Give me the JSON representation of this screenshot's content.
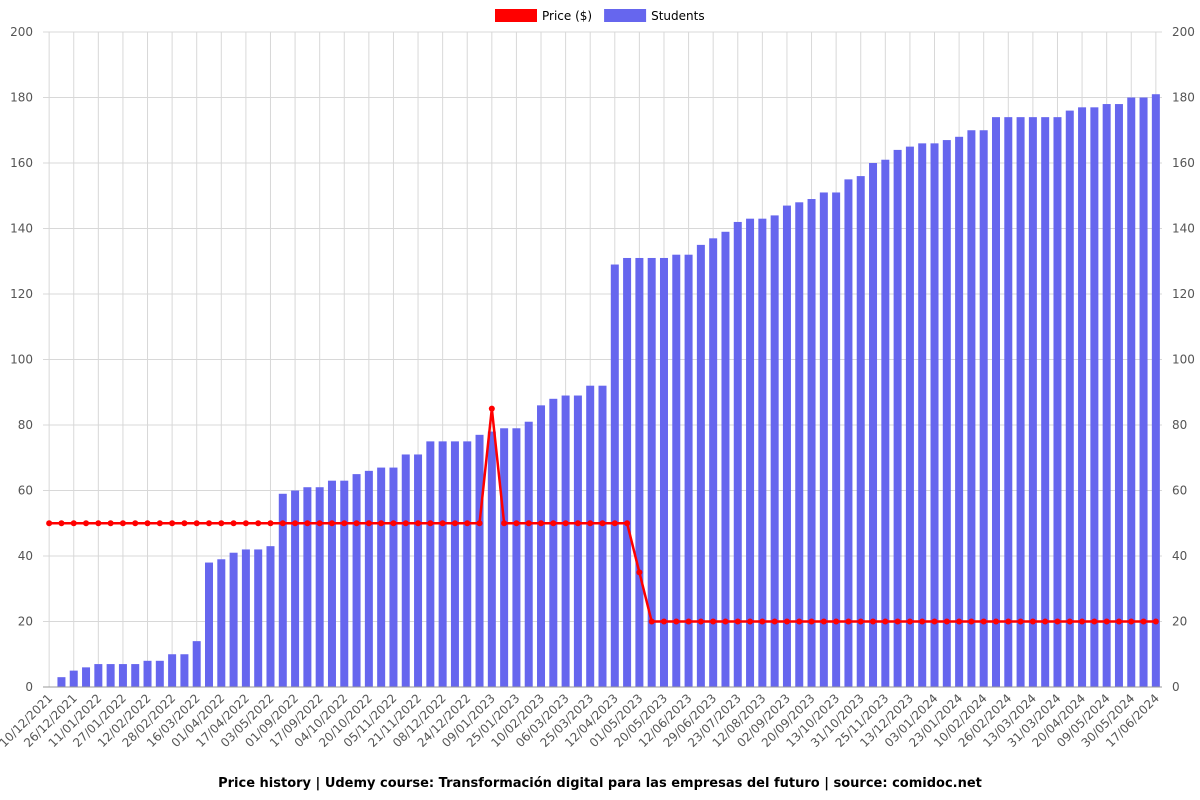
{
  "chart_data": {
    "type": "bar",
    "title": "Price history | Udemy course: Transformación digital para las empresas del futuro | source: comidoc.net",
    "categories": [
      "10/12/2021",
      null,
      "26/12/2021",
      null,
      "11/01/2022",
      null,
      "27/01/2022",
      null,
      "12/02/2022",
      null,
      "28/02/2022",
      null,
      "16/03/2022",
      null,
      "01/04/2022",
      null,
      "17/04/2022",
      null,
      "03/05/2022",
      null,
      "01/09/2022",
      null,
      "17/09/2022",
      null,
      "04/10/2022",
      null,
      "20/10/2022",
      null,
      "05/11/2022",
      null,
      "21/11/2022",
      null,
      "08/12/2022",
      null,
      "24/12/2022",
      null,
      "09/01/2023",
      null,
      "25/01/2023",
      null,
      "10/02/2023",
      null,
      "06/03/2023",
      null,
      "25/03/2023",
      null,
      "12/04/2023",
      null,
      "01/05/2023",
      null,
      "20/05/2023",
      null,
      "12/06/2023",
      null,
      "29/06/2023",
      null,
      "23/07/2023",
      null,
      "12/08/2023",
      null,
      "02/09/2023",
      null,
      "20/09/2023",
      null,
      "13/10/2023",
      null,
      "31/10/2023",
      null,
      "25/11/2023",
      null,
      "13/12/2023",
      null,
      "03/01/2024",
      null,
      "23/01/2024",
      null,
      "10/02/2024",
      null,
      "26/02/2024",
      null,
      "13/03/2024",
      null,
      "31/03/2024",
      null,
      "20/04/2024",
      null,
      "09/05/2024",
      null,
      "30/05/2024",
      null,
      "17/06/2024"
    ],
    "series": [
      {
        "name": "Price ($)",
        "type": "line",
        "color": "#ff0000",
        "values": [
          50,
          50,
          50,
          50,
          50,
          50,
          50,
          50,
          50,
          50,
          50,
          50,
          50,
          50,
          50,
          50,
          50,
          50,
          50,
          50,
          50,
          50,
          50,
          50,
          50,
          50,
          50,
          50,
          50,
          50,
          50,
          50,
          50,
          50,
          50,
          50,
          85,
          50,
          50,
          50,
          50,
          50,
          50,
          50,
          50,
          50,
          50,
          50,
          35,
          20,
          20,
          20,
          20,
          20,
          20,
          20,
          20,
          20,
          20,
          20,
          20,
          20,
          20,
          20,
          20,
          20,
          20,
          20,
          20,
          20,
          20,
          20,
          20,
          20,
          20,
          20,
          20,
          20,
          20,
          20,
          20,
          20,
          20,
          20,
          20,
          20,
          20,
          20,
          20,
          20,
          20
        ]
      },
      {
        "name": "Students",
        "type": "bar",
        "color": "#6666ee",
        "axis": "y2",
        "values": [
          0,
          3,
          5,
          6,
          7,
          7,
          7,
          7,
          8,
          8,
          10,
          10,
          14,
          38,
          39,
          41,
          42,
          42,
          43,
          59,
          60,
          61,
          61,
          63,
          63,
          65,
          66,
          67,
          67,
          71,
          71,
          75,
          75,
          75,
          75,
          77,
          78,
          79,
          79,
          81,
          86,
          88,
          89,
          89,
          92,
          92,
          129,
          131,
          131,
          131,
          131,
          132,
          132,
          135,
          137,
          139,
          142,
          143,
          143,
          144,
          147,
          148,
          149,
          151,
          151,
          155,
          156,
          160,
          161,
          164,
          165,
          166,
          166,
          167,
          168,
          170,
          170,
          174,
          174,
          174,
          174,
          174,
          174,
          176,
          177,
          177,
          178,
          178,
          180,
          180,
          181
        ]
      }
    ],
    "ylim": [
      0,
      200
    ],
    "yticks": [
      0,
      20,
      40,
      60,
      80,
      100,
      120,
      140,
      160,
      180,
      200
    ],
    "y2lim": [
      0,
      200
    ],
    "y2ticks": [
      0,
      20,
      40,
      60,
      80,
      100,
      120,
      140,
      160,
      180,
      200
    ],
    "grid": true
  }
}
